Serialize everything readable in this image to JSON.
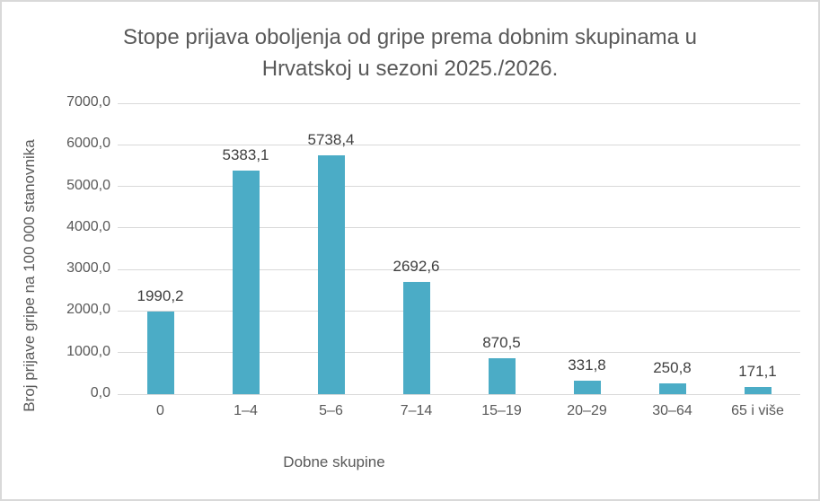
{
  "chart_data": {
    "type": "bar",
    "title": "Stope prijava oboljenja od gripe prema dobnim skupinama u Hrvatskoj u sezoni 2025./2026.",
    "categories": [
      "0",
      "1–4",
      "5–6",
      "7–14",
      "15–19",
      "20–29",
      "30–64",
      "65 i više"
    ],
    "values": [
      1990.2,
      5383.1,
      5738.4,
      2692.6,
      870.5,
      331.8,
      250.8,
      171.1
    ],
    "value_labels": [
      "1990,2",
      "5383,1",
      "5738,4",
      "2692,6",
      "870,5",
      "331,8",
      "250,8",
      "171,1"
    ],
    "xlabel": "Dobne skupine",
    "ylabel": "Broj prijave gripe na 100 000 stanovnika",
    "ylim": [
      0,
      7000
    ],
    "ytick_interval": 1000,
    "ytick_labels": [
      "0,0",
      "1000,0",
      "2000,0",
      "3000,0",
      "4000,0",
      "5000,0",
      "6000,0",
      "7000,0"
    ],
    "grid": true,
    "legend": "none",
    "colors": {
      "bar": "#4BACC6",
      "title_text": "#595959",
      "axis_text": "#595959",
      "data_label_text": "#3F3F3F",
      "gridline": "#D9D9D9",
      "chart_border": "#D9D9D9",
      "background": "#FFFFFF"
    }
  }
}
